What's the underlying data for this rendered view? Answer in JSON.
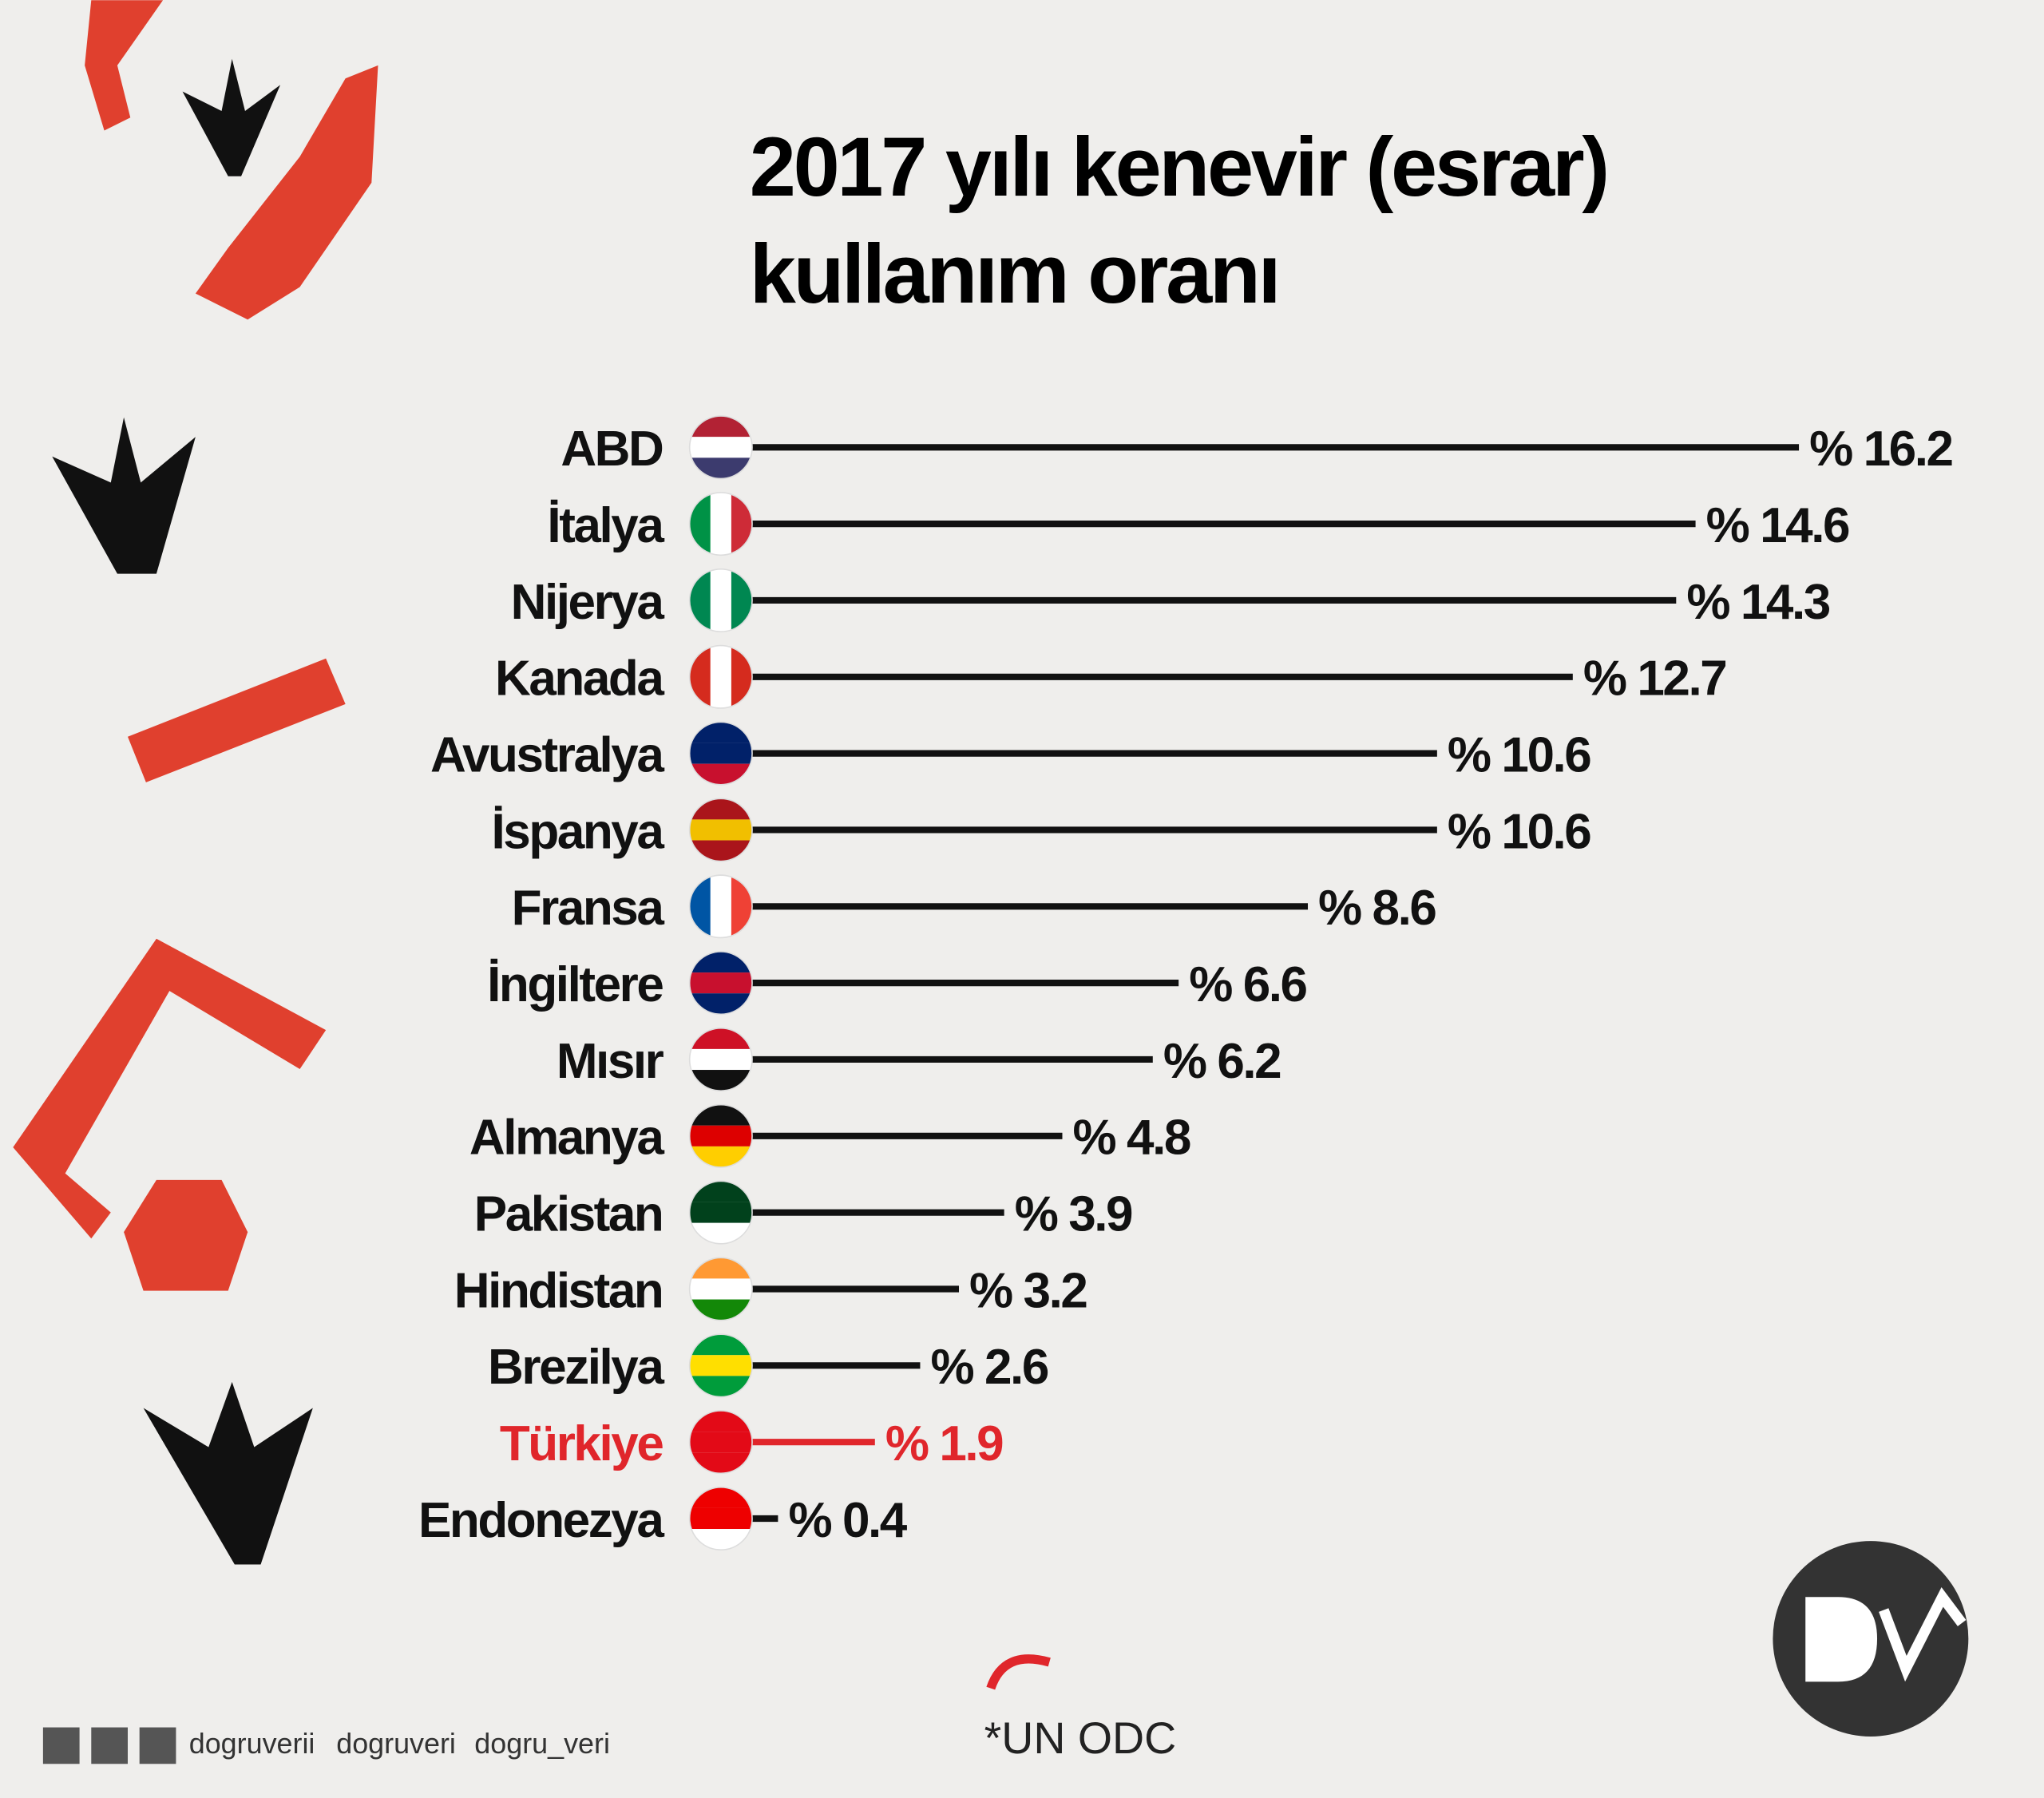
{
  "chart_data": {
    "type": "lollipop-bar",
    "title": "2017 yılı kenevir (esrar)",
    "subtitle": "kullanım oranı",
    "categories": [
      "ABD",
      "İtalya",
      "Nijerya",
      "Kanada",
      "Avustralya",
      "İspanya",
      "Fransa",
      "İngiltere",
      "Mısır",
      "Almanya",
      "Pakistan",
      "Hindistan",
      "Brezilya",
      "Türkiye",
      "Endonezya"
    ],
    "values": [
      16.2,
      14.6,
      14.3,
      12.7,
      10.6,
      10.6,
      8.6,
      6.6,
      6.2,
      4.8,
      3.9,
      3.2,
      2.6,
      1.9,
      0.4
    ],
    "value_labels": [
      "% 16.2",
      "% 14.6",
      "% 14.3",
      "% 12.7",
      "% 10.6",
      "% 10.6",
      "% 8.6",
      "% 6.6",
      "% 6.2",
      "% 4.8",
      "% 3.9",
      "% 3.2",
      "% 2.6",
      "% 1.9",
      "% 0.4"
    ],
    "colors": [
      "#111111",
      "#111111",
      "#111111",
      "#111111",
      "#111111",
      "#111111",
      "#111111",
      "#111111",
      "#111111",
      "#111111",
      "#111111",
      "#111111",
      "#111111",
      "#e0262b",
      "#111111"
    ],
    "source": "*UN ODC",
    "social": [
      "dogruverii",
      "dogruveri",
      "dogru_veri"
    ]
  }
}
